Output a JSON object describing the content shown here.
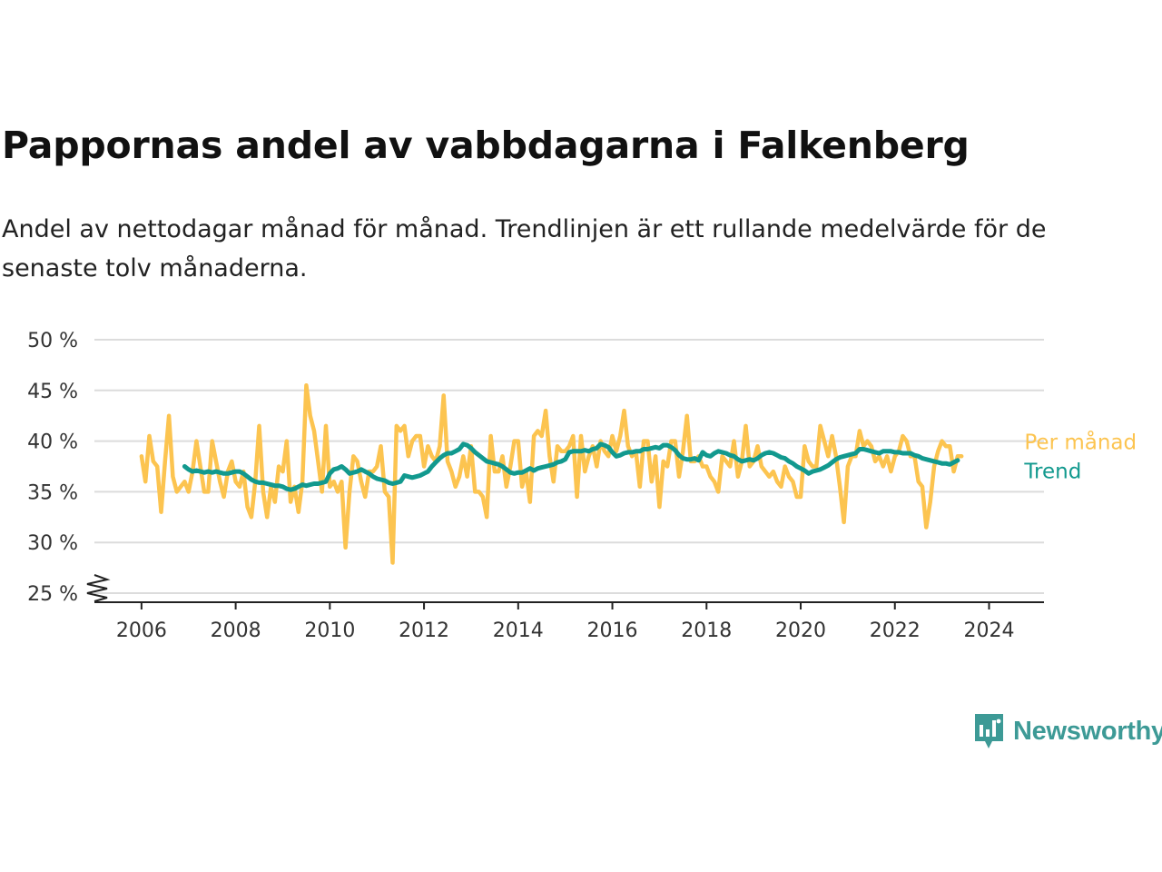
{
  "title": "Pappornas andel av vabbdagarna i Falkenberg",
  "subtitle": "Andel av nettodagar månad för månad. Trendlinjen är ett rullande medelvärde för de senaste tolv månaderna.",
  "brand": {
    "name": "Newsworthy",
    "color": "#3d9a96",
    "icon": "bar-chart-speech-bubble-icon"
  },
  "chart_data": {
    "type": "line",
    "xlabel": "",
    "ylabel": "",
    "x_ticks": [
      "2006",
      "2008",
      "2010",
      "2012",
      "2014",
      "2016",
      "2018",
      "2020",
      "2022",
      "2024"
    ],
    "y_ticks": [
      {
        "value": 25,
        "label": "25 %"
      },
      {
        "value": 30,
        "label": "30 %"
      },
      {
        "value": 35,
        "label": "35 %"
      },
      {
        "value": 40,
        "label": "40 %"
      },
      {
        "value": 45,
        "label": "45 %"
      },
      {
        "value": 50,
        "label": "50 %"
      }
    ],
    "ylim": [
      25,
      50
    ],
    "xlim": [
      "2005-01",
      "2025-03"
    ],
    "y_axis_break": true,
    "grid": "horizontal",
    "legend": "end-of-line labels",
    "series": [
      {
        "name": "Per månad",
        "color": "#fcc450",
        "start": "2006-01",
        "frequency": "monthly",
        "values": [
          38.5,
          36.0,
          40.5,
          38.0,
          37.5,
          33.0,
          38.0,
          42.5,
          36.5,
          35.0,
          35.5,
          36.0,
          35.0,
          37.0,
          40.0,
          37.5,
          35.0,
          35.0,
          40.0,
          38.0,
          36.0,
          34.5,
          37.0,
          38.0,
          36.0,
          35.5,
          37.0,
          33.5,
          32.5,
          36.0,
          41.5,
          35.0,
          32.5,
          35.5,
          34.0,
          37.5,
          37.0,
          40.0,
          34.0,
          35.5,
          33.0,
          36.0,
          45.5,
          42.5,
          41.0,
          38.0,
          35.0,
          41.5,
          35.5,
          36.0,
          35.0,
          36.0,
          29.5,
          35.0,
          38.5,
          38.0,
          36.0,
          34.5,
          37.0,
          37.0,
          37.5,
          39.5,
          35.0,
          34.5,
          28.0,
          41.5,
          41.0,
          41.5,
          38.5,
          40.0,
          40.5,
          40.5,
          37.5,
          39.5,
          38.5,
          38.0,
          39.5,
          44.5,
          38.0,
          37.0,
          35.5,
          36.5,
          38.5,
          36.5,
          39.5,
          35.0,
          35.0,
          34.5,
          32.5,
          40.5,
          37.0,
          37.0,
          38.5,
          35.5,
          37.5,
          40.0,
          40.0,
          35.5,
          37.0,
          34.0,
          40.5,
          41.0,
          40.5,
          43.0,
          38.5,
          36.0,
          39.5,
          39.0,
          39.0,
          39.5,
          40.5,
          34.5,
          40.5,
          37.0,
          38.5,
          39.5,
          37.5,
          40.0,
          39.0,
          38.5,
          40.5,
          39.0,
          40.5,
          43.0,
          39.5,
          38.5,
          39.0,
          35.5,
          40.0,
          40.0,
          36.0,
          38.5,
          33.5,
          38.0,
          37.5,
          40.0,
          40.0,
          36.5,
          39.0,
          42.5,
          38.0,
          38.0,
          38.5,
          37.5,
          37.5,
          36.5,
          36.0,
          35.0,
          38.5,
          38.0,
          37.5,
          40.0,
          36.5,
          38.0,
          41.5,
          37.5,
          38.0,
          39.5,
          37.5,
          37.0,
          36.5,
          37.0,
          36.0,
          35.5,
          37.5,
          36.5,
          36.0,
          34.5,
          34.5,
          39.5,
          38.0,
          37.5,
          37.5,
          41.5,
          40.0,
          38.5,
          40.5,
          38.5,
          35.5,
          32.0,
          37.5,
          38.5,
          38.5,
          41.0,
          39.5,
          40.0,
          39.5,
          38.0,
          38.5,
          37.5,
          38.5,
          37.0,
          38.5,
          39.0,
          40.5,
          40.0,
          38.5,
          38.5,
          36.0,
          35.5,
          31.5,
          34.0,
          37.5,
          39.0,
          40.0,
          39.5,
          39.5,
          37.0,
          38.5,
          38.5
        ]
      },
      {
        "name": "Trend",
        "color": "#12998e",
        "start": "2006-12",
        "frequency": "monthly",
        "values": [
          37.5,
          37.2,
          37.0,
          37.1,
          37.0,
          36.9,
          37.0,
          36.9,
          37.0,
          36.9,
          36.8,
          36.8,
          36.9,
          37.0,
          37.0,
          36.8,
          36.5,
          36.2,
          36.0,
          35.9,
          35.9,
          35.8,
          35.7,
          35.6,
          35.6,
          35.5,
          35.3,
          35.2,
          35.3,
          35.5,
          35.7,
          35.6,
          35.7,
          35.8,
          35.8,
          35.9,
          36.0,
          36.8,
          37.2,
          37.3,
          37.5,
          37.2,
          36.8,
          36.9,
          37.0,
          37.2,
          37.0,
          36.8,
          36.5,
          36.3,
          36.2,
          36.1,
          35.9,
          35.8,
          35.9,
          36.0,
          36.6,
          36.5,
          36.4,
          36.5,
          36.6,
          36.8,
          37.0,
          37.5,
          37.9,
          38.3,
          38.6,
          38.8,
          38.8,
          39.0,
          39.2,
          39.7,
          39.6,
          39.3,
          38.9,
          38.6,
          38.3,
          38.0,
          37.9,
          37.8,
          37.7,
          37.5,
          37.2,
          36.9,
          36.8,
          36.9,
          36.9,
          37.1,
          37.3,
          37.1,
          37.3,
          37.4,
          37.5,
          37.6,
          37.7,
          37.9,
          38.0,
          38.2,
          38.9,
          39.0,
          39.0,
          39.0,
          39.1,
          39.0,
          39.2,
          39.3,
          39.7,
          39.6,
          39.4,
          38.9,
          38.5,
          38.6,
          38.8,
          38.9,
          38.9,
          39.0,
          39.0,
          39.2,
          39.2,
          39.3,
          39.4,
          39.3,
          39.6,
          39.6,
          39.4,
          39.1,
          38.6,
          38.3,
          38.2,
          38.2,
          38.3,
          38.1,
          38.9,
          38.6,
          38.5,
          38.8,
          39.0,
          38.9,
          38.8,
          38.6,
          38.5,
          38.2,
          38.0,
          38.1,
          38.2,
          38.1,
          38.3,
          38.6,
          38.8,
          38.9,
          38.8,
          38.6,
          38.4,
          38.3,
          38.0,
          37.8,
          37.5,
          37.3,
          37.1,
          36.8,
          37.0,
          37.1,
          37.2,
          37.4,
          37.6,
          37.9,
          38.2,
          38.4,
          38.5,
          38.6,
          38.7,
          38.8,
          39.2,
          39.2,
          39.1,
          39.0,
          38.9,
          38.8,
          39.0,
          39.0,
          39.0,
          38.9,
          38.9,
          38.8,
          38.8,
          38.8,
          38.6,
          38.5,
          38.3,
          38.2,
          38.1,
          38.0,
          37.9,
          37.8,
          37.8,
          37.7,
          37.9,
          38.1
        ]
      }
    ]
  }
}
